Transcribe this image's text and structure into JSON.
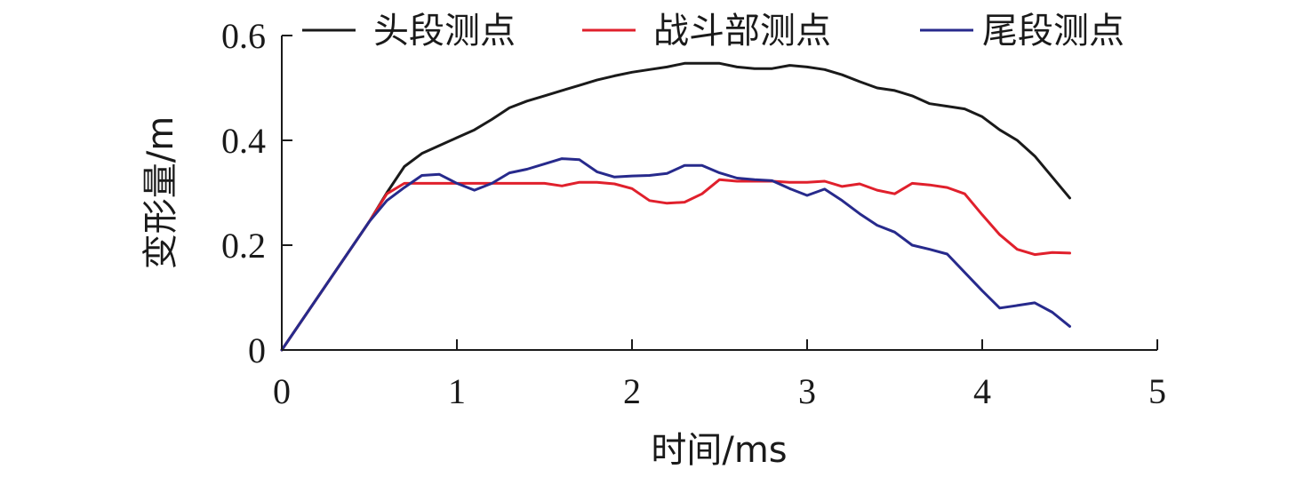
{
  "chart_data": {
    "type": "line",
    "xlabel": "时间/ms",
    "ylabel": "变形量/m",
    "xlim": [
      0,
      5
    ],
    "ylim": [
      0,
      0.6
    ],
    "xticks": [
      0,
      1,
      2,
      3,
      4,
      5
    ],
    "yticks": [
      0,
      0.2,
      0.4,
      0.6
    ],
    "xtick_labels": [
      "0",
      "1",
      "2",
      "3",
      "4",
      "5"
    ],
    "ytick_labels": [
      "0",
      "0.2",
      "0.4",
      "0.6"
    ],
    "grid": false,
    "legend_position": "top",
    "series": [
      {
        "name": "头段测点",
        "color": "#1a1a1a",
        "x": [
          0,
          0.5,
          0.6,
          0.7,
          0.8,
          0.9,
          1.0,
          1.1,
          1.2,
          1.3,
          1.4,
          1.5,
          1.6,
          1.7,
          1.8,
          1.9,
          2.0,
          2.1,
          2.2,
          2.3,
          2.4,
          2.5,
          2.6,
          2.7,
          2.8,
          2.9,
          3.0,
          3.1,
          3.2,
          3.3,
          3.4,
          3.5,
          3.6,
          3.7,
          3.8,
          3.9,
          4.0,
          4.1,
          4.2,
          4.3,
          4.4,
          4.5
        ],
        "y": [
          0,
          0.245,
          0.3,
          0.35,
          0.375,
          0.39,
          0.405,
          0.42,
          0.44,
          0.462,
          0.475,
          0.485,
          0.495,
          0.505,
          0.515,
          0.523,
          0.53,
          0.535,
          0.54,
          0.547,
          0.547,
          0.547,
          0.54,
          0.537,
          0.537,
          0.543,
          0.54,
          0.535,
          0.525,
          0.512,
          0.5,
          0.495,
          0.485,
          0.47,
          0.465,
          0.46,
          0.445,
          0.42,
          0.4,
          0.37,
          0.33,
          0.29
        ]
      },
      {
        "name": "战斗部测点",
        "color": "#e0202c",
        "x": [
          0,
          0.5,
          0.6,
          0.7,
          0.8,
          0.9,
          1.0,
          1.1,
          1.2,
          1.3,
          1.4,
          1.5,
          1.6,
          1.7,
          1.8,
          1.9,
          2.0,
          2.1,
          2.2,
          2.3,
          2.4,
          2.5,
          2.6,
          2.7,
          2.8,
          2.9,
          3.0,
          3.1,
          3.2,
          3.3,
          3.4,
          3.5,
          3.6,
          3.7,
          3.8,
          3.9,
          4.0,
          4.1,
          4.2,
          4.3,
          4.4,
          4.5
        ],
        "y": [
          0,
          0.245,
          0.298,
          0.318,
          0.318,
          0.318,
          0.318,
          0.318,
          0.318,
          0.318,
          0.318,
          0.318,
          0.313,
          0.32,
          0.32,
          0.317,
          0.308,
          0.285,
          0.28,
          0.282,
          0.298,
          0.325,
          0.322,
          0.322,
          0.322,
          0.32,
          0.32,
          0.322,
          0.312,
          0.317,
          0.305,
          0.298,
          0.318,
          0.315,
          0.31,
          0.298,
          0.258,
          0.22,
          0.192,
          0.182,
          0.186,
          0.185
        ]
      },
      {
        "name": "尾段测点",
        "color": "#272a8c",
        "x": [
          0,
          0.5,
          0.6,
          0.7,
          0.8,
          0.9,
          1.0,
          1.1,
          1.2,
          1.3,
          1.4,
          1.5,
          1.6,
          1.7,
          1.8,
          1.9,
          2.0,
          2.1,
          2.2,
          2.3,
          2.4,
          2.5,
          2.6,
          2.7,
          2.8,
          2.9,
          3.0,
          3.1,
          3.2,
          3.3,
          3.4,
          3.5,
          3.6,
          3.7,
          3.8,
          3.9,
          4.0,
          4.1,
          4.2,
          4.3,
          4.4,
          4.5
        ],
        "y": [
          0,
          0.245,
          0.285,
          0.31,
          0.333,
          0.335,
          0.318,
          0.305,
          0.318,
          0.338,
          0.345,
          0.355,
          0.365,
          0.363,
          0.34,
          0.33,
          0.332,
          0.333,
          0.337,
          0.352,
          0.352,
          0.338,
          0.328,
          0.325,
          0.323,
          0.308,
          0.295,
          0.307,
          0.285,
          0.26,
          0.238,
          0.225,
          0.2,
          0.192,
          0.183,
          0.148,
          0.113,
          0.08,
          0.085,
          0.09,
          0.072,
          0.045
        ]
      }
    ]
  }
}
